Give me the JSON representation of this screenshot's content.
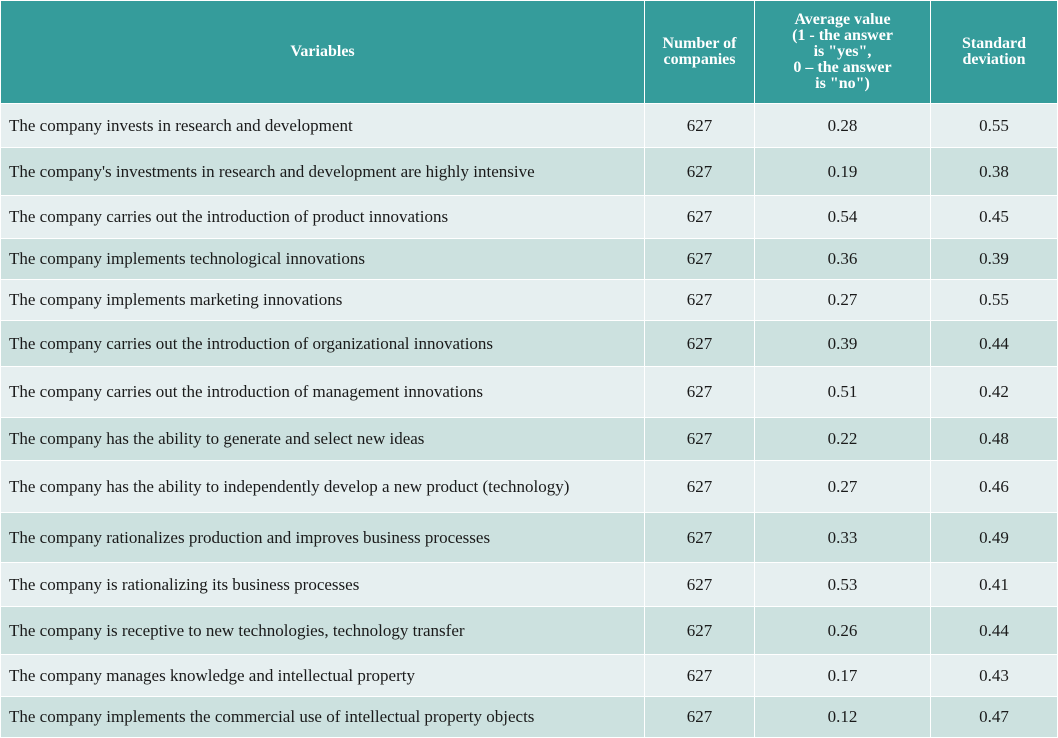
{
  "table": {
    "headers": [
      "Variables",
      "Number of companies",
      "Average value (1 - the answer is \"yes\", 0 – the answer is \"no\")",
      "Standard deviation"
    ],
    "header_lines": {
      "number_of_companies": [
        "Number of",
        "companies"
      ],
      "average_value": [
        "Average value",
        "(1 - the answer",
        "is \"yes\",",
        "0 – the answer",
        "is \"no\")"
      ],
      "standard_deviation": [
        "Standard",
        "deviation"
      ]
    },
    "rows": [
      {
        "variable": "The company invests in research and development",
        "number": "627",
        "average": "0.28",
        "std": "0.55"
      },
      {
        "variable": "The company's investments in research and development are highly intensive",
        "number": "627",
        "average": "0.19",
        "std": "0.38"
      },
      {
        "variable": "The company carries out the introduction of product innovations",
        "number": "627",
        "average": "0.54",
        "std": "0.45"
      },
      {
        "variable": "The company implements technological innovations",
        "number": "627",
        "average": "0.36",
        "std": "0.39"
      },
      {
        "variable": "The company implements marketing innovations",
        "number": "627",
        "average": "0.27",
        "std": "0.55"
      },
      {
        "variable": "The company carries out the introduction of organizational innovations",
        "number": "627",
        "average": "0.39",
        "std": "0.44"
      },
      {
        "variable": "The company carries out the introduction of management innovations",
        "number": "627",
        "average": "0.51",
        "std": "0.42"
      },
      {
        "variable": "The company has the ability to generate and select new ideas",
        "number": "627",
        "average": "0.22",
        "std": "0.48"
      },
      {
        "variable": "The company has the ability to independently develop a new product (technology)",
        "number": "627",
        "average": "0.27",
        "std": "0.46"
      },
      {
        "variable": "The company rationalizes production and improves business processes",
        "number": "627",
        "average": "0.33",
        "std": "0.49"
      },
      {
        "variable": "The company is rationalizing its business processes",
        "number": "627",
        "average": "0.53",
        "std": "0.41"
      },
      {
        "variable": "The company is receptive to new technologies, technology transfer",
        "number": "627",
        "average": "0.26",
        "std": "0.44"
      },
      {
        "variable": "The company manages knowledge and intellectual property",
        "number": "627",
        "average": "0.17",
        "std": "0.43"
      },
      {
        "variable": "The company implements the commercial use of intellectual property objects",
        "number": "627",
        "average": "0.12",
        "std": "0.47"
      }
    ]
  }
}
